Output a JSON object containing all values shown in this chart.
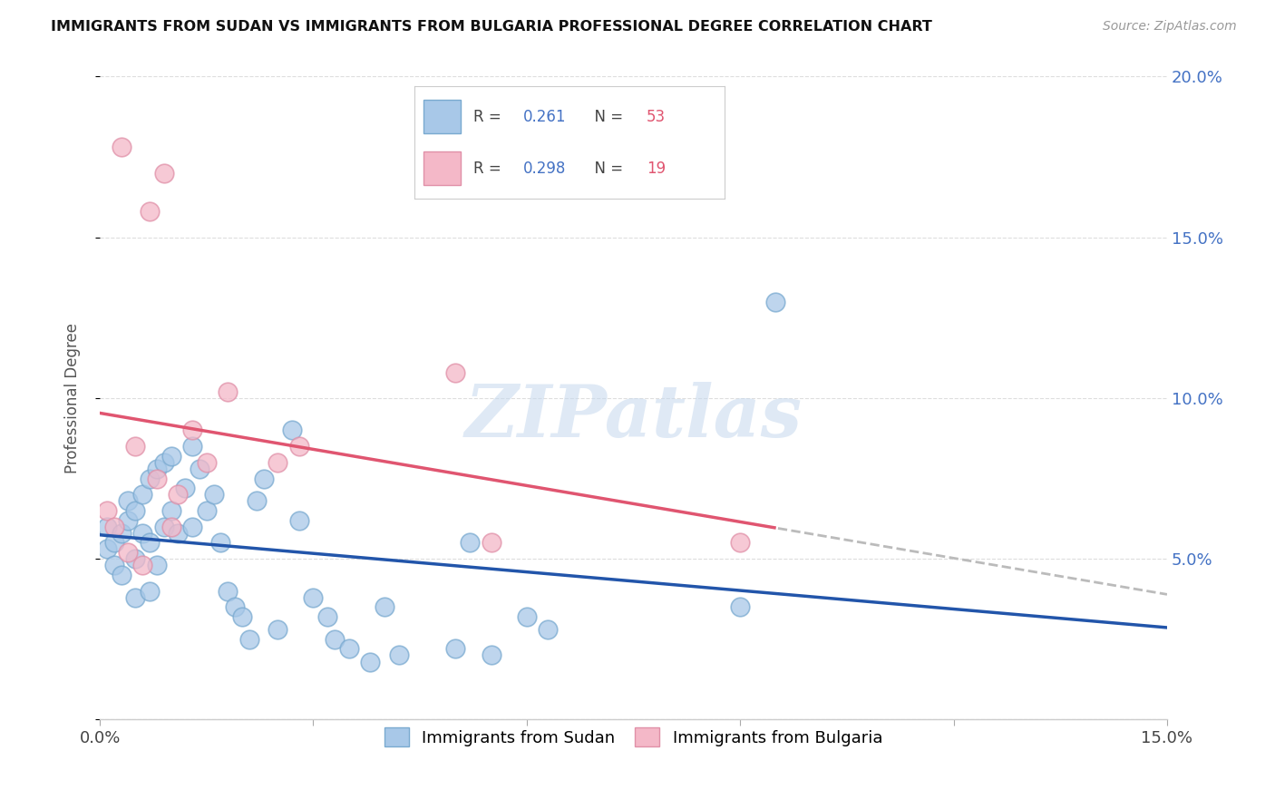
{
  "title": "IMMIGRANTS FROM SUDAN VS IMMIGRANTS FROM BULGARIA PROFESSIONAL DEGREE CORRELATION CHART",
  "source": "Source: ZipAtlas.com",
  "ylabel": "Professional Degree",
  "sudan_color": "#A8C8E8",
  "sudan_edge_color": "#7AAAD0",
  "bulgaria_color": "#F4B8C8",
  "bulgaria_edge_color": "#E090A8",
  "sudan_R": 0.261,
  "sudan_N": 53,
  "bulgaria_R": 0.298,
  "bulgaria_N": 19,
  "sudan_line_color": "#2255AA",
  "bulgaria_line_color": "#E05570",
  "extrapolation_color": "#BBBBBB",
  "watermark": "ZIPatlas",
  "axis_label_color": "#4472C4",
  "tick_color": "#888888",
  "grid_color": "#DDDDDD",
  "sudan_x": [
    0.001,
    0.001,
    0.002,
    0.002,
    0.003,
    0.003,
    0.004,
    0.004,
    0.005,
    0.005,
    0.005,
    0.006,
    0.006,
    0.007,
    0.007,
    0.007,
    0.008,
    0.008,
    0.009,
    0.009,
    0.01,
    0.01,
    0.011,
    0.012,
    0.013,
    0.013,
    0.014,
    0.015,
    0.016,
    0.017,
    0.018,
    0.019,
    0.02,
    0.021,
    0.022,
    0.023,
    0.025,
    0.027,
    0.028,
    0.03,
    0.032,
    0.033,
    0.035,
    0.038,
    0.04,
    0.042,
    0.05,
    0.052,
    0.055,
    0.06,
    0.063,
    0.09,
    0.095
  ],
  "sudan_y": [
    0.053,
    0.06,
    0.048,
    0.055,
    0.045,
    0.058,
    0.062,
    0.068,
    0.038,
    0.05,
    0.065,
    0.058,
    0.07,
    0.04,
    0.055,
    0.075,
    0.048,
    0.078,
    0.06,
    0.08,
    0.065,
    0.082,
    0.058,
    0.072,
    0.06,
    0.085,
    0.078,
    0.065,
    0.07,
    0.055,
    0.04,
    0.035,
    0.032,
    0.025,
    0.068,
    0.075,
    0.028,
    0.09,
    0.062,
    0.038,
    0.032,
    0.025,
    0.022,
    0.018,
    0.035,
    0.02,
    0.022,
    0.055,
    0.02,
    0.032,
    0.028,
    0.035,
    0.13
  ],
  "bulgaria_x": [
    0.001,
    0.002,
    0.003,
    0.004,
    0.005,
    0.006,
    0.007,
    0.008,
    0.009,
    0.01,
    0.011,
    0.013,
    0.015,
    0.018,
    0.025,
    0.028,
    0.05,
    0.055,
    0.09
  ],
  "bulgaria_y": [
    0.065,
    0.06,
    0.178,
    0.052,
    0.085,
    0.048,
    0.158,
    0.075,
    0.17,
    0.06,
    0.07,
    0.09,
    0.08,
    0.102,
    0.08,
    0.085,
    0.108,
    0.055,
    0.055
  ],
  "xlim": [
    0.0,
    0.15
  ],
  "ylim": [
    0.0,
    0.2
  ],
  "ytick_vals": [
    0.0,
    0.05,
    0.1,
    0.15,
    0.2
  ],
  "ytick_labels": [
    "",
    "5.0%",
    "10.0%",
    "15.0%",
    "20.0%"
  ]
}
